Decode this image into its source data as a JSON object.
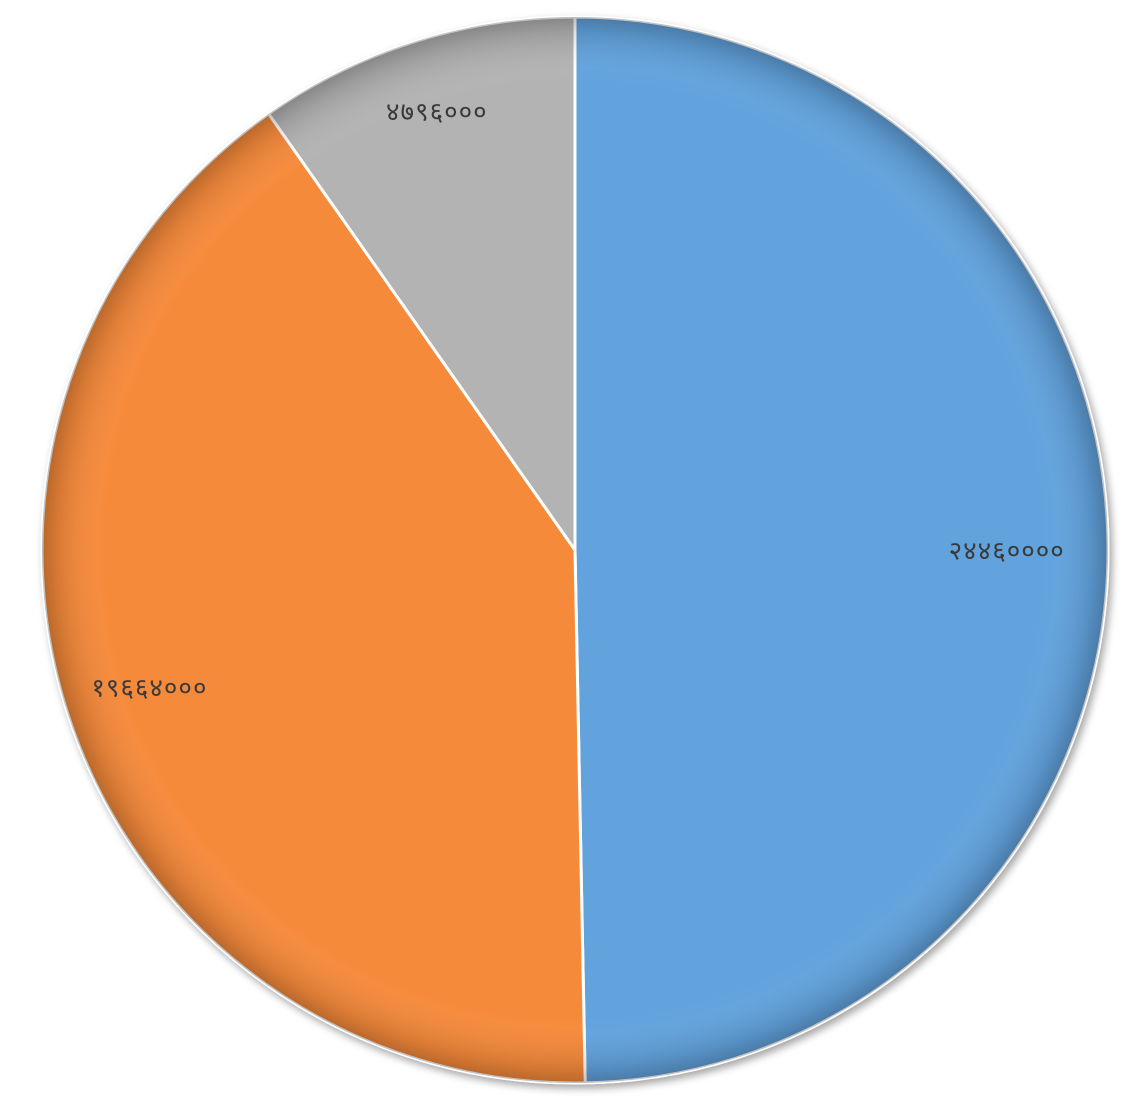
{
  "chart_data": {
    "type": "pie",
    "title": "",
    "start_angle": "12 o'clock",
    "direction": "clockwise",
    "slices": [
      {
        "value": 24460000,
        "label": "२४४६००००",
        "color": "#62A3DE"
      },
      {
        "value": 19964000,
        "label": "१९६६४०००",
        "color": "#F68A3A"
      },
      {
        "value": 4796000,
        "label": "४७९६०००",
        "color": "#B3B3B3"
      }
    ],
    "legend": "none"
  }
}
